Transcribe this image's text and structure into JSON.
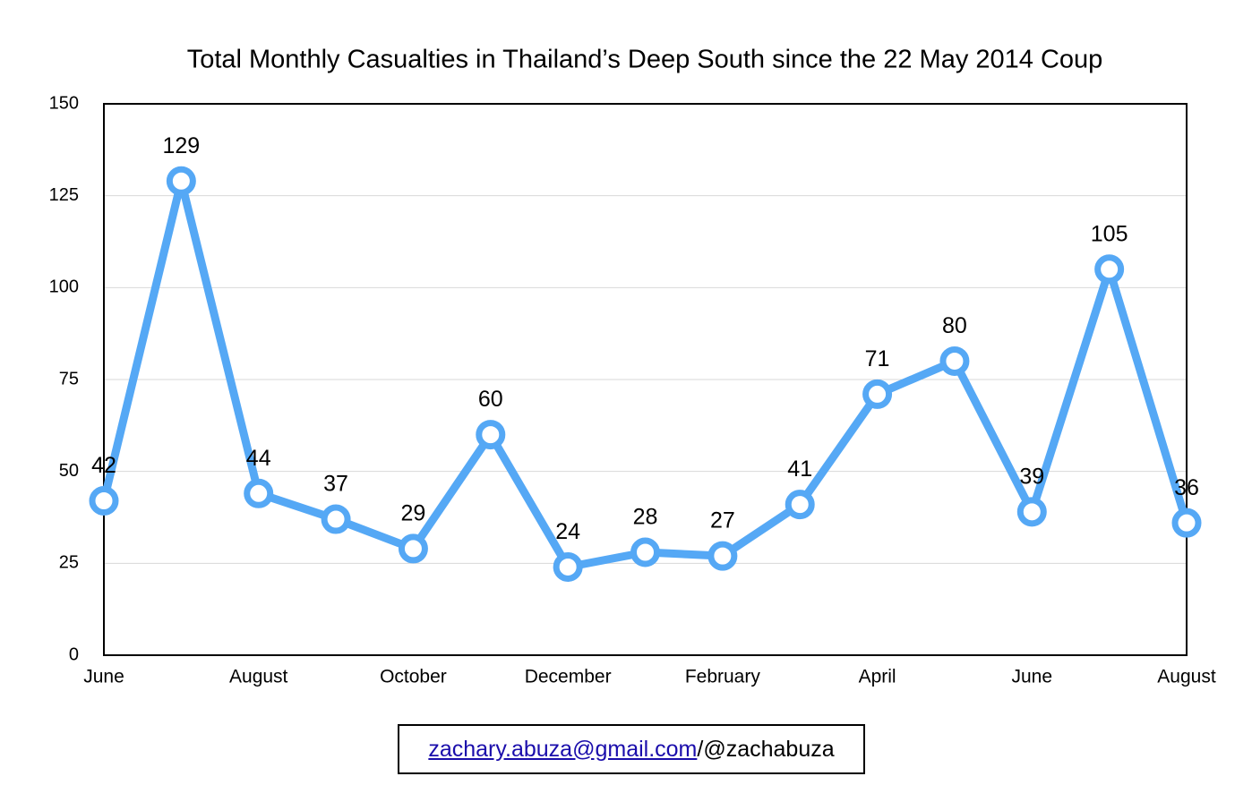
{
  "chart_data": {
    "type": "line",
    "title": "Total Monthly Casualties in Thailand’s Deep South since the 22 May 2014 Coup",
    "categories": [
      "June",
      null,
      "August",
      null,
      "October",
      null,
      "December",
      null,
      "February",
      null,
      "April",
      null,
      "June",
      null,
      "August"
    ],
    "series": [
      {
        "name": "Casualties",
        "color": "#55a8f5",
        "values": [
          42,
          129,
          44,
          37,
          29,
          60,
          24,
          28,
          27,
          41,
          71,
          80,
          39,
          105,
          36
        ]
      }
    ],
    "ylim": [
      0,
      150
    ],
    "yticks": [
      0,
      25,
      50,
      75,
      100,
      125,
      150
    ],
    "grid": true
  },
  "footer": {
    "email": "zachary.abuza@gmail.com",
    "handle": "/@zachabuza"
  }
}
